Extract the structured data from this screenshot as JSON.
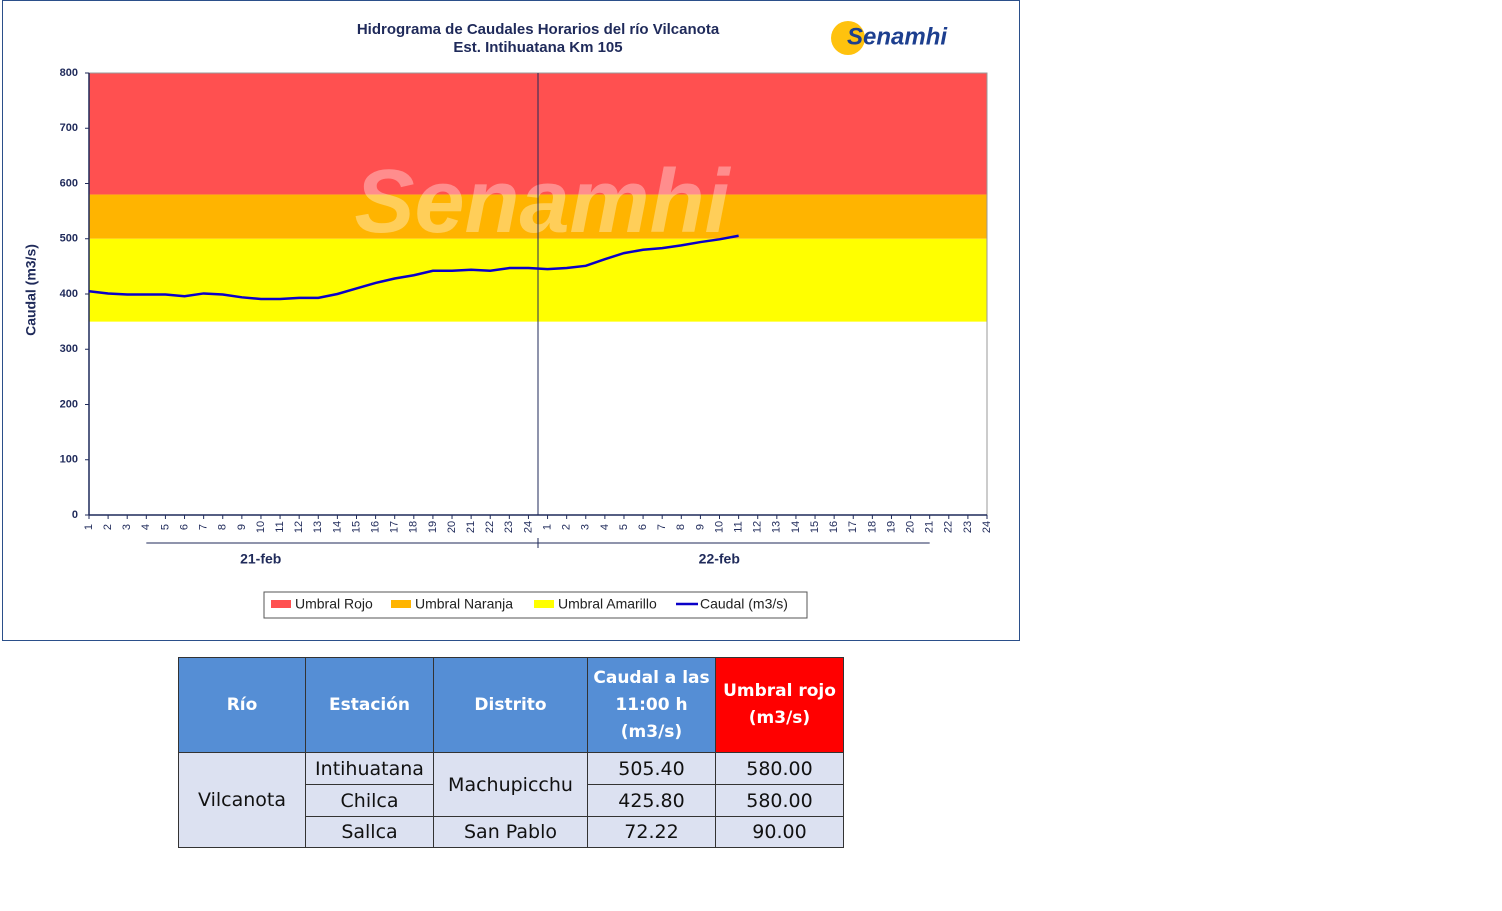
{
  "chart_data": {
    "type": "line",
    "title": "Hidrograma de Caudales Horarios del río Vilcanota",
    "subtitle": "Est. Intihuatana Km 105",
    "logo": "Senamhi",
    "watermark": "Senamhi",
    "y_label": "Caudal (m3/s)",
    "categories": [
      "1",
      "2",
      "3",
      "4",
      "5",
      "6",
      "7",
      "8",
      "9",
      "10",
      "11",
      "12",
      "13",
      "14",
      "15",
      "16",
      "17",
      "18",
      "19",
      "20",
      "21",
      "22",
      "23",
      "24",
      "1",
      "2",
      "3",
      "4",
      "5",
      "6",
      "7",
      "8",
      "9",
      "10",
      "11",
      "12",
      "13",
      "14",
      "15",
      "16",
      "17",
      "18",
      "19",
      "20",
      "21",
      "22",
      "23",
      "24"
    ],
    "group_labels": [
      "21-feb",
      "22-feb"
    ],
    "bands": [
      {
        "name": "Umbral Rojo",
        "color": "#ff5050",
        "from": 580,
        "to": 800
      },
      {
        "name": "Umbral Naranja",
        "color": "#ffb400",
        "from": 500,
        "to": 580
      },
      {
        "name": "Umbral Amarillo",
        "color": "#ffff00",
        "from": 350,
        "to": 500
      }
    ],
    "series": [
      {
        "name": "Caudal (m3/s)",
        "color": "#0a00c8",
        "values": [
          405,
          401,
          399,
          399,
          399,
          396,
          401,
          399,
          394,
          391,
          391,
          393,
          393,
          400,
          410,
          420,
          428,
          434,
          442,
          442,
          444,
          442,
          447,
          447,
          445,
          447,
          451,
          463,
          474,
          480,
          483,
          488,
          494,
          499,
          505.4,
          null,
          null,
          null,
          null,
          null,
          null,
          null,
          null,
          null,
          null,
          null,
          null,
          null
        ]
      }
    ],
    "ylim": [
      0,
      800
    ],
    "yticks": [
      0,
      100,
      200,
      300,
      400,
      500,
      600,
      700,
      800
    ]
  },
  "table": {
    "header": [
      "Río",
      "Estación",
      "Distrito",
      "Caudal a las 11:00 h (m3/s)",
      "Umbral rojo (m3/s)"
    ],
    "river": "Vilcanota",
    "districts": [
      "Machupicchu",
      "San Pablo"
    ],
    "rows": [
      {
        "station": "Intihuatana",
        "caudal": "505.40",
        "umbral": "580.00"
      },
      {
        "station": "Chilca",
        "caudal": "425.80",
        "umbral": "580.00"
      },
      {
        "station": "Sallca",
        "caudal": "72.22",
        "umbral": "90.00"
      }
    ]
  }
}
